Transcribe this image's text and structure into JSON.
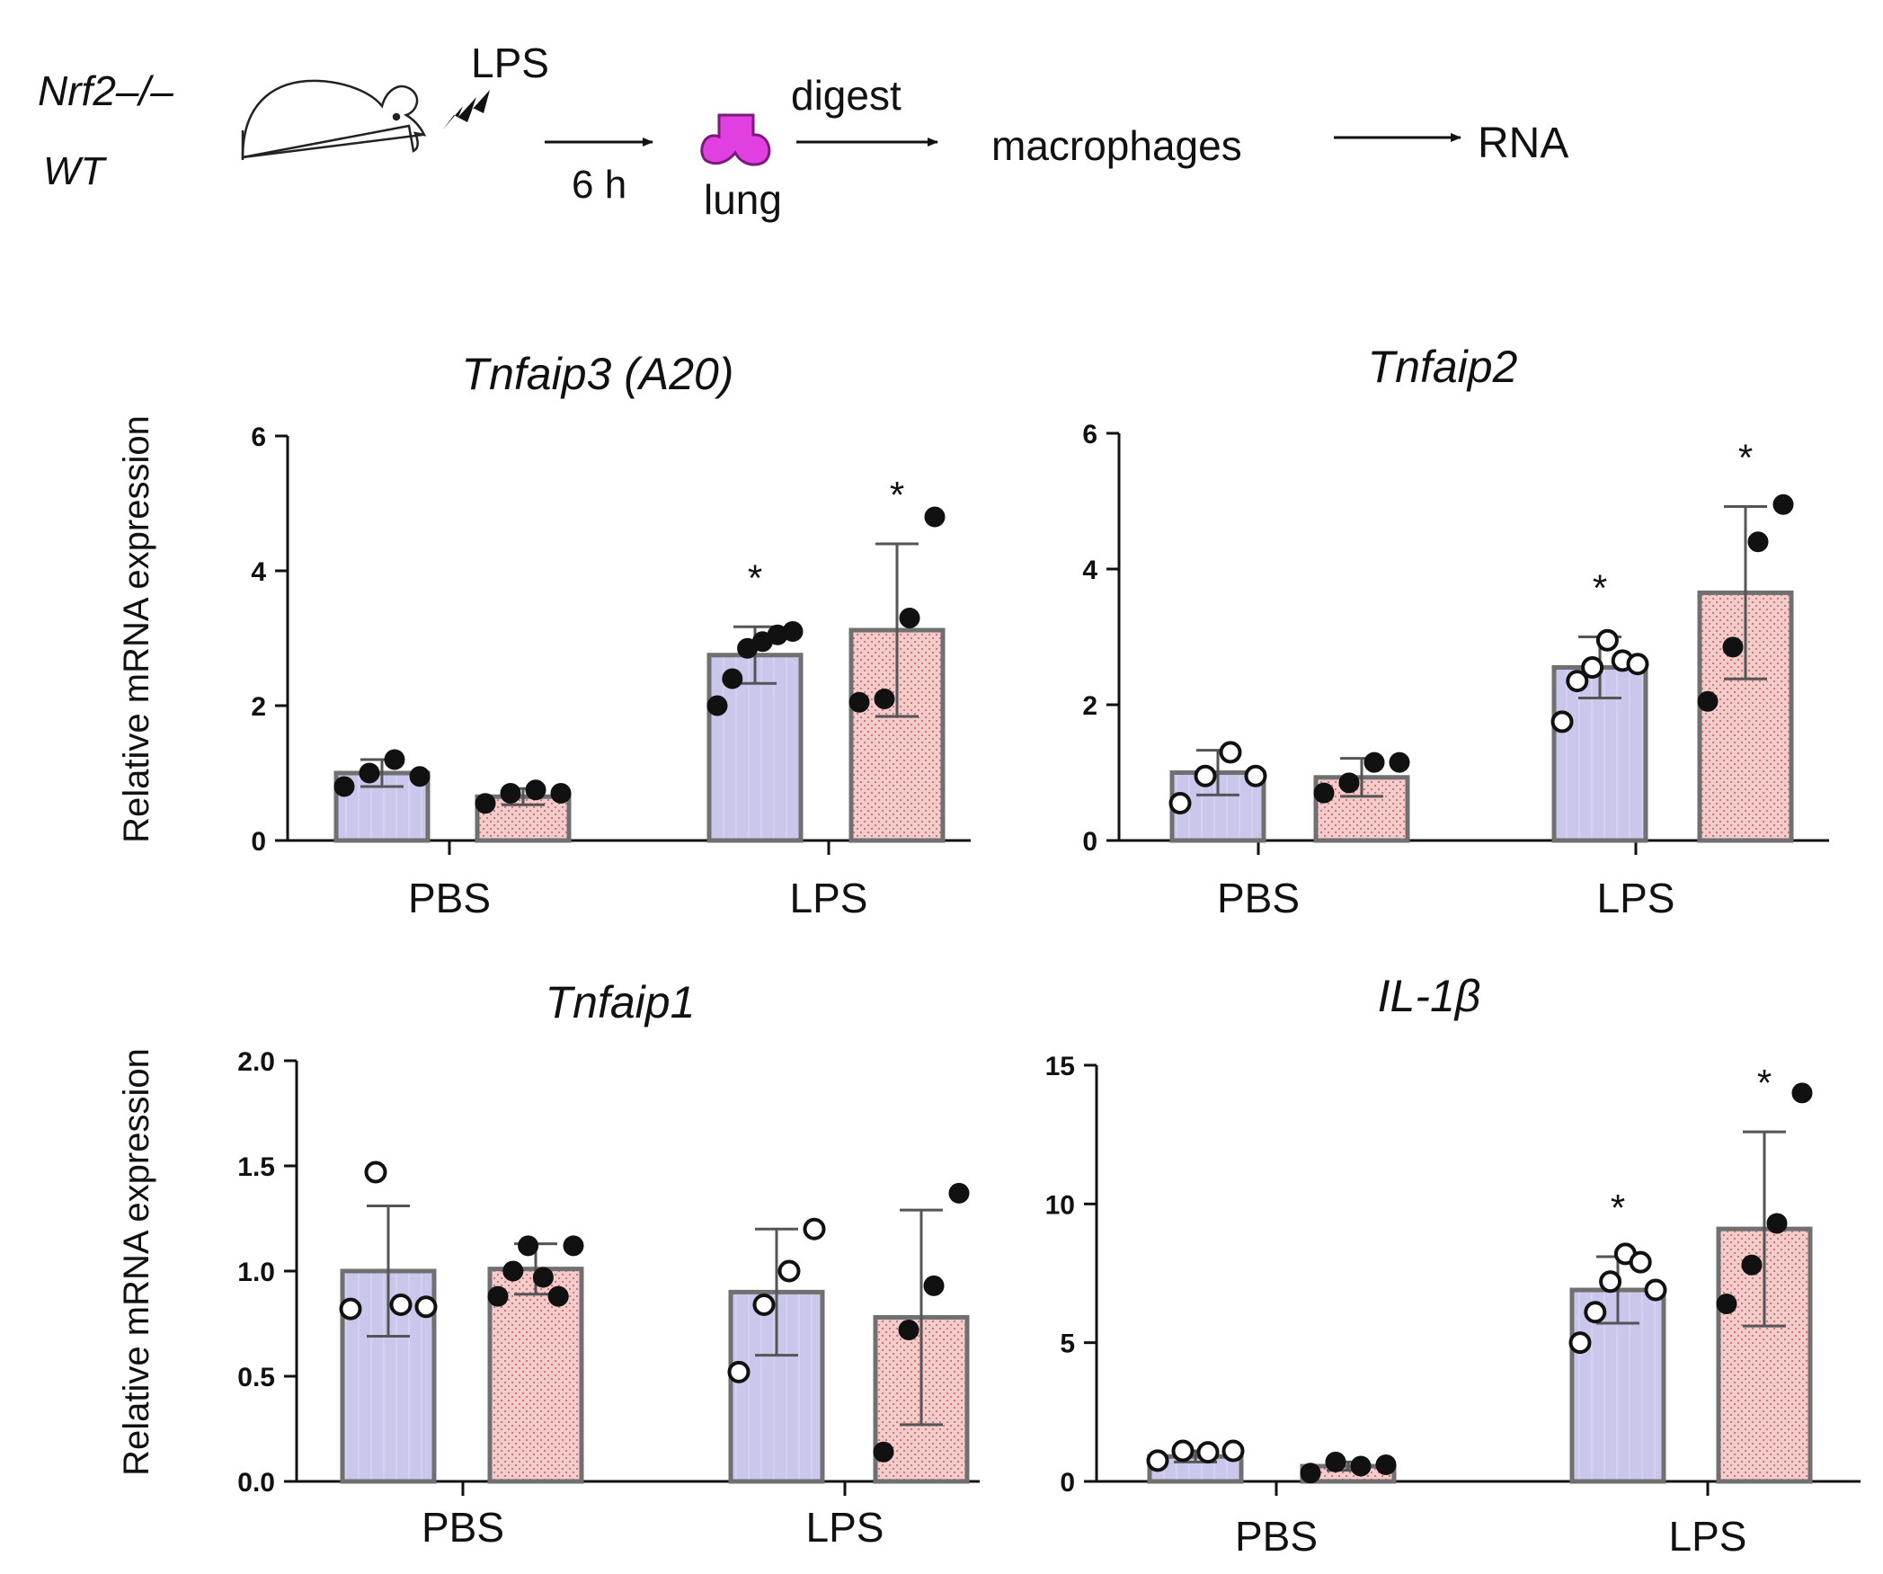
{
  "schematic": {
    "genotype_ko": "Nrf2–/–",
    "genotype_wt": "WT",
    "treatment": "LPS",
    "time": "6 h",
    "organ": "lung",
    "step_digest": "digest",
    "cells": "macrophages",
    "product": "RNA"
  },
  "colors": {
    "wt_fill": "#c9c8ec",
    "ko_fill": "#f0c4c4",
    "ko_dots": "#d97070",
    "bar_edge": "#707070",
    "errorbar": "#555555",
    "lung": "#e040e0"
  },
  "chart_data": [
    {
      "type": "bar",
      "title": "Tnfaip3 (A20)",
      "ylabel": "Relative mRNA expression",
      "categories": [
        "PBS",
        "LPS"
      ],
      "ylim": [
        0,
        6
      ],
      "yticks": [
        "0",
        "2",
        "4",
        "6"
      ],
      "series": [
        {
          "name": "WT",
          "values": [
            1.0,
            2.75
          ],
          "errors": [
            0.2,
            0.42
          ],
          "points": [
            [
              0.8,
              1.0,
              1.2,
              0.95
            ],
            [
              2.0,
              2.4,
              2.85,
              2.95,
              3.05,
              3.1
            ]
          ],
          "hollow": false
        },
        {
          "name": "Nrf2–/–",
          "values": [
            0.65,
            3.12
          ],
          "errors": [
            0.12,
            1.28
          ],
          "points": [
            [
              0.55,
              0.7,
              0.75,
              0.7
            ],
            [
              2.05,
              2.1,
              3.3,
              4.8
            ]
          ],
          "hollow": false
        }
      ],
      "significance": [
        "",
        "*"
      ],
      "significance_ko": [
        "",
        "*"
      ]
    },
    {
      "type": "bar",
      "title": "Tnfaip2",
      "ylabel": "",
      "categories": [
        "PBS",
        "LPS"
      ],
      "ylim": [
        0,
        6
      ],
      "yticks": [
        "0",
        "2",
        "4",
        "6"
      ],
      "series": [
        {
          "name": "WT",
          "values": [
            1.0,
            2.55
          ],
          "errors": [
            0.33,
            0.45
          ],
          "points": [
            [
              0.55,
              0.95,
              1.3,
              0.95
            ],
            [
              1.75,
              2.35,
              2.55,
              2.95,
              2.65,
              2.6
            ]
          ],
          "hollow": true
        },
        {
          "name": "Nrf2–/–",
          "values": [
            0.93,
            3.65
          ],
          "errors": [
            0.28,
            1.27
          ],
          "points": [
            [
              0.7,
              0.85,
              1.15,
              1.15
            ],
            [
              2.05,
              2.85,
              4.4,
              4.95
            ]
          ],
          "hollow": false
        }
      ],
      "significance": [
        "",
        "*"
      ],
      "significance_ko": [
        "",
        "*"
      ]
    },
    {
      "type": "bar",
      "title": "Tnfaip1",
      "ylabel": "Relative mRNA expression",
      "categories": [
        "PBS",
        "LPS"
      ],
      "ylim": [
        0,
        2
      ],
      "yticks": [
        "0.0",
        "0.5",
        "1.0",
        "1.5",
        "2.0"
      ],
      "series": [
        {
          "name": "WT",
          "values": [
            1.0,
            0.9
          ],
          "errors": [
            0.31,
            0.3
          ],
          "points": [
            [
              0.82,
              1.47,
              0.84,
              0.83
            ],
            [
              0.52,
              0.84,
              1.0,
              1.2
            ]
          ],
          "hollow": true
        },
        {
          "name": "Nrf2–/–",
          "values": [
            1.01,
            0.78
          ],
          "errors": [
            0.12,
            0.51
          ],
          "points": [
            [
              0.88,
              1.0,
              1.12,
              0.97,
              0.88,
              1.12
            ],
            [
              0.14,
              0.72,
              0.93,
              1.37
            ]
          ],
          "hollow": false
        }
      ],
      "significance": [
        "",
        ""
      ],
      "significance_ko": [
        "",
        ""
      ]
    },
    {
      "type": "bar",
      "title": "IL-1β",
      "ylabel": "",
      "categories": [
        "PBS",
        "LPS"
      ],
      "ylim": [
        0,
        15
      ],
      "yticks": [
        "0",
        "5",
        "10",
        "15"
      ],
      "series": [
        {
          "name": "WT",
          "values": [
            0.9,
            6.9
          ],
          "errors": [
            0.2,
            1.2
          ],
          "points": [
            [
              0.75,
              1.1,
              1.05,
              1.1
            ],
            [
              5.0,
              6.1,
              7.2,
              8.2,
              7.9,
              6.9
            ]
          ],
          "hollow": true
        },
        {
          "name": "Nrf2–/–",
          "values": [
            0.55,
            9.1
          ],
          "errors": [
            0.15,
            3.5
          ],
          "points": [
            [
              0.3,
              0.7,
              0.55,
              0.6
            ],
            [
              6.4,
              7.8,
              9.3,
              14.0
            ]
          ],
          "hollow": false
        }
      ],
      "significance": [
        "",
        "*"
      ],
      "significance_ko": [
        "",
        "*"
      ]
    }
  ]
}
